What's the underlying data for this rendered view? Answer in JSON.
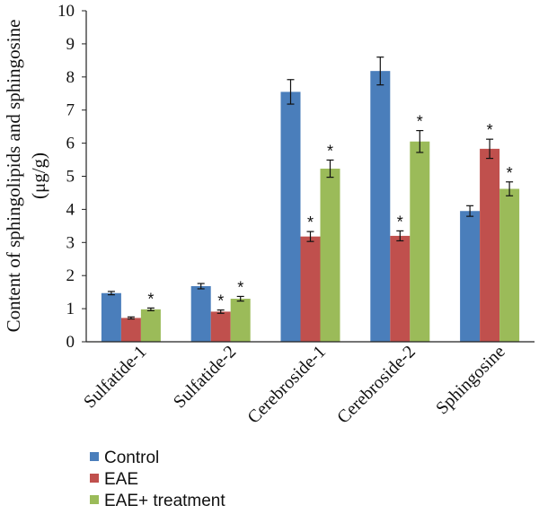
{
  "chart_data": {
    "type": "bar",
    "title": "",
    "xlabel": "",
    "ylabel": [
      "Content of sphingolipids and sphingosine",
      "(μg/g)"
    ],
    "ylim": [
      0,
      10
    ],
    "yticks": [
      "0",
      "1",
      "2",
      "3",
      "4",
      "5",
      "6",
      "7",
      "8",
      "9",
      "10"
    ],
    "grid": false,
    "legend_position": "bottom-left",
    "categories": [
      "Sulfatide-1",
      "Sulfatide-2",
      "Cerebroside-1",
      "Cerebroside-2",
      "Sphingosine"
    ],
    "significance_marker": "*",
    "series": [
      {
        "name": "Control",
        "color": "#4a7ebb",
        "values": [
          1.47,
          1.68,
          7.55,
          8.18,
          3.95
        ],
        "errors": [
          0.05,
          0.08,
          0.37,
          0.42,
          0.16
        ],
        "significant": [
          false,
          false,
          false,
          false,
          false
        ]
      },
      {
        "name": "EAE",
        "color": "#c0504d",
        "values": [
          0.72,
          0.91,
          3.18,
          3.2,
          5.83
        ],
        "errors": [
          0.03,
          0.05,
          0.15,
          0.15,
          0.29
        ],
        "significant": [
          false,
          true,
          true,
          true,
          true
        ]
      },
      {
        "name": "EAE+ treatment",
        "color": "#9bbb59",
        "values": [
          0.98,
          1.3,
          5.23,
          6.05,
          4.62
        ],
        "errors": [
          0.04,
          0.07,
          0.26,
          0.33,
          0.21
        ],
        "significant": [
          true,
          true,
          true,
          true,
          true
        ]
      }
    ]
  }
}
